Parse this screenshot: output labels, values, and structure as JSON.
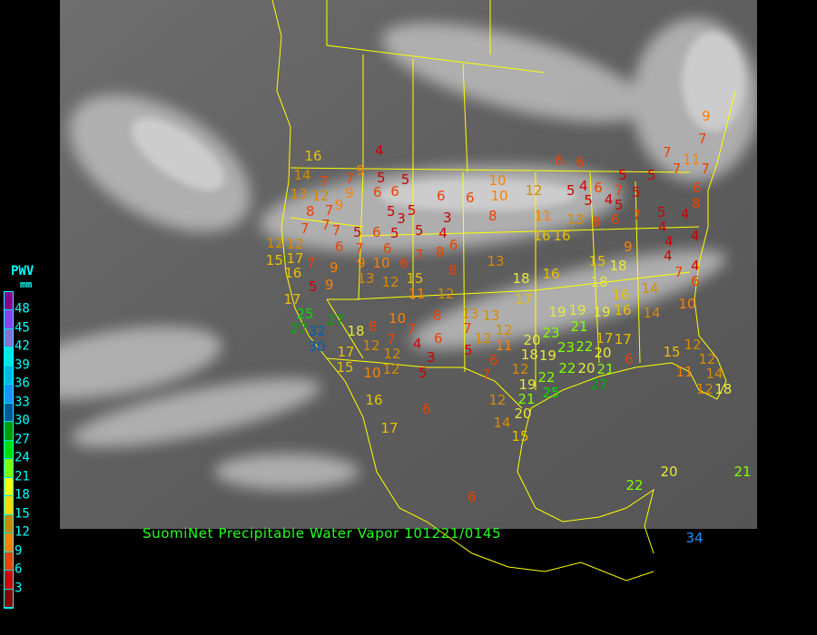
{
  "title": "SuomiNet Precipitable Water Vapor 101221/0145",
  "legend": {
    "title": "PWV",
    "unit": "mm",
    "labels": [
      "48",
      "45",
      "42",
      "39",
      "36",
      "33",
      "30",
      "27",
      "24",
      "21",
      "18",
      "15",
      "12",
      "9",
      "6",
      "3"
    ],
    "colors_top_to_bottom": [
      "#8b008b",
      "#9040f0",
      "#8a70d8",
      "#00e8e8",
      "#00b8e8",
      "#1e90ff",
      "#005599",
      "#009900",
      "#00dd00",
      "#80ff00",
      "#ffff00",
      "#ffd700",
      "#cc8800",
      "#ff8000",
      "#f04000",
      "#d00000",
      "#8b0000"
    ]
  },
  "border_color": "#ffff00",
  "stations": [
    4,
    16,
    14,
    7,
    9,
    5,
    5,
    13,
    12,
    9,
    9,
    7,
    6,
    6,
    6,
    6,
    10,
    10,
    12,
    6,
    6,
    5,
    5,
    7,
    7,
    11,
    7,
    9,
    7,
    5,
    5,
    4,
    6,
    4,
    5,
    7,
    5,
    6,
    8,
    8,
    7,
    7,
    5,
    5,
    3,
    3,
    8,
    11,
    13,
    8,
    6,
    7,
    5,
    4,
    4,
    4,
    4,
    4,
    12,
    12,
    7,
    7,
    5,
    6,
    5,
    5,
    4,
    6,
    6,
    7,
    6,
    7,
    8,
    15,
    17,
    7,
    16,
    9,
    9,
    10,
    6,
    8,
    13,
    16,
    16,
    9,
    15,
    18,
    18,
    7,
    4,
    6,
    5,
    9,
    13,
    12,
    15,
    11,
    12,
    18,
    16,
    16,
    14,
    17,
    25,
    27,
    32,
    30,
    27,
    18,
    8,
    10,
    8,
    7,
    13,
    13,
    7,
    12,
    17,
    19,
    19,
    21,
    19,
    16,
    14,
    10,
    20,
    23,
    23,
    22,
    17,
    17,
    11,
    12,
    5,
    4,
    6,
    7,
    12,
    17,
    12,
    3,
    6,
    7,
    12,
    18,
    19,
    22,
    20,
    20,
    21,
    6,
    15,
    12,
    12,
    14,
    11,
    12,
    18,
    27,
    19,
    22,
    25,
    21,
    20,
    14,
    15,
    12,
    10,
    12,
    5,
    15,
    16,
    6,
    17,
    22,
    20,
    21,
    6,
    34
  ]
}
